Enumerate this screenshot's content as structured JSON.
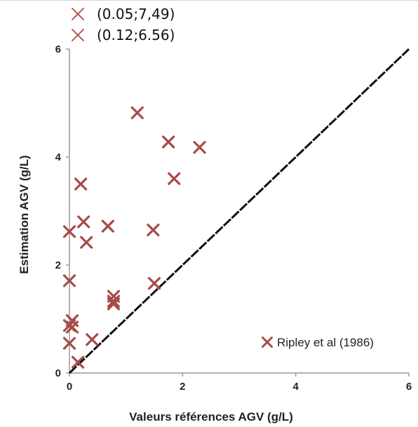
{
  "chart_data": {
    "type": "scatter",
    "title": "",
    "xlabel": "Valeurs références AGV (g/L)",
    "ylabel": "Estimation AGV (g/L)",
    "xlim": [
      0,
      6
    ],
    "ylim": [
      0,
      6
    ],
    "x_ticks": [
      "0",
      "2",
      "4",
      "6"
    ],
    "y_ticks": [
      "0",
      "2",
      "4",
      "6"
    ],
    "grid": false,
    "legend_position": "bottom-right",
    "colors": {
      "series": "#a84a4a",
      "identity_line": "#111111",
      "axis": "#9a9a9a"
    },
    "series": [
      {
        "name": "Ripley et al (1986)",
        "marker": "x",
        "points": [
          [
            0.0,
            2.62
          ],
          [
            0.0,
            1.71
          ],
          [
            0.0,
            0.88
          ],
          [
            0.0,
            0.55
          ],
          [
            0.05,
            0.97
          ],
          [
            0.05,
            0.85
          ],
          [
            0.15,
            0.2
          ],
          [
            0.2,
            3.5
          ],
          [
            0.25,
            2.8
          ],
          [
            0.3,
            2.42
          ],
          [
            0.4,
            0.62
          ],
          [
            0.68,
            2.72
          ],
          [
            0.78,
            1.42
          ],
          [
            0.78,
            1.33
          ],
          [
            0.78,
            1.28
          ],
          [
            1.2,
            4.82
          ],
          [
            1.48,
            2.65
          ],
          [
            1.5,
            1.66
          ],
          [
            1.75,
            4.28
          ],
          [
            1.85,
            3.6
          ],
          [
            2.3,
            4.18
          ]
        ]
      }
    ],
    "identity_line": {
      "from": [
        0,
        0
      ],
      "to": [
        6,
        6
      ]
    },
    "offscale_points": [
      {
        "label": "(0.05;7,49)"
      },
      {
        "label": "(0.12;6.56)"
      }
    ]
  }
}
